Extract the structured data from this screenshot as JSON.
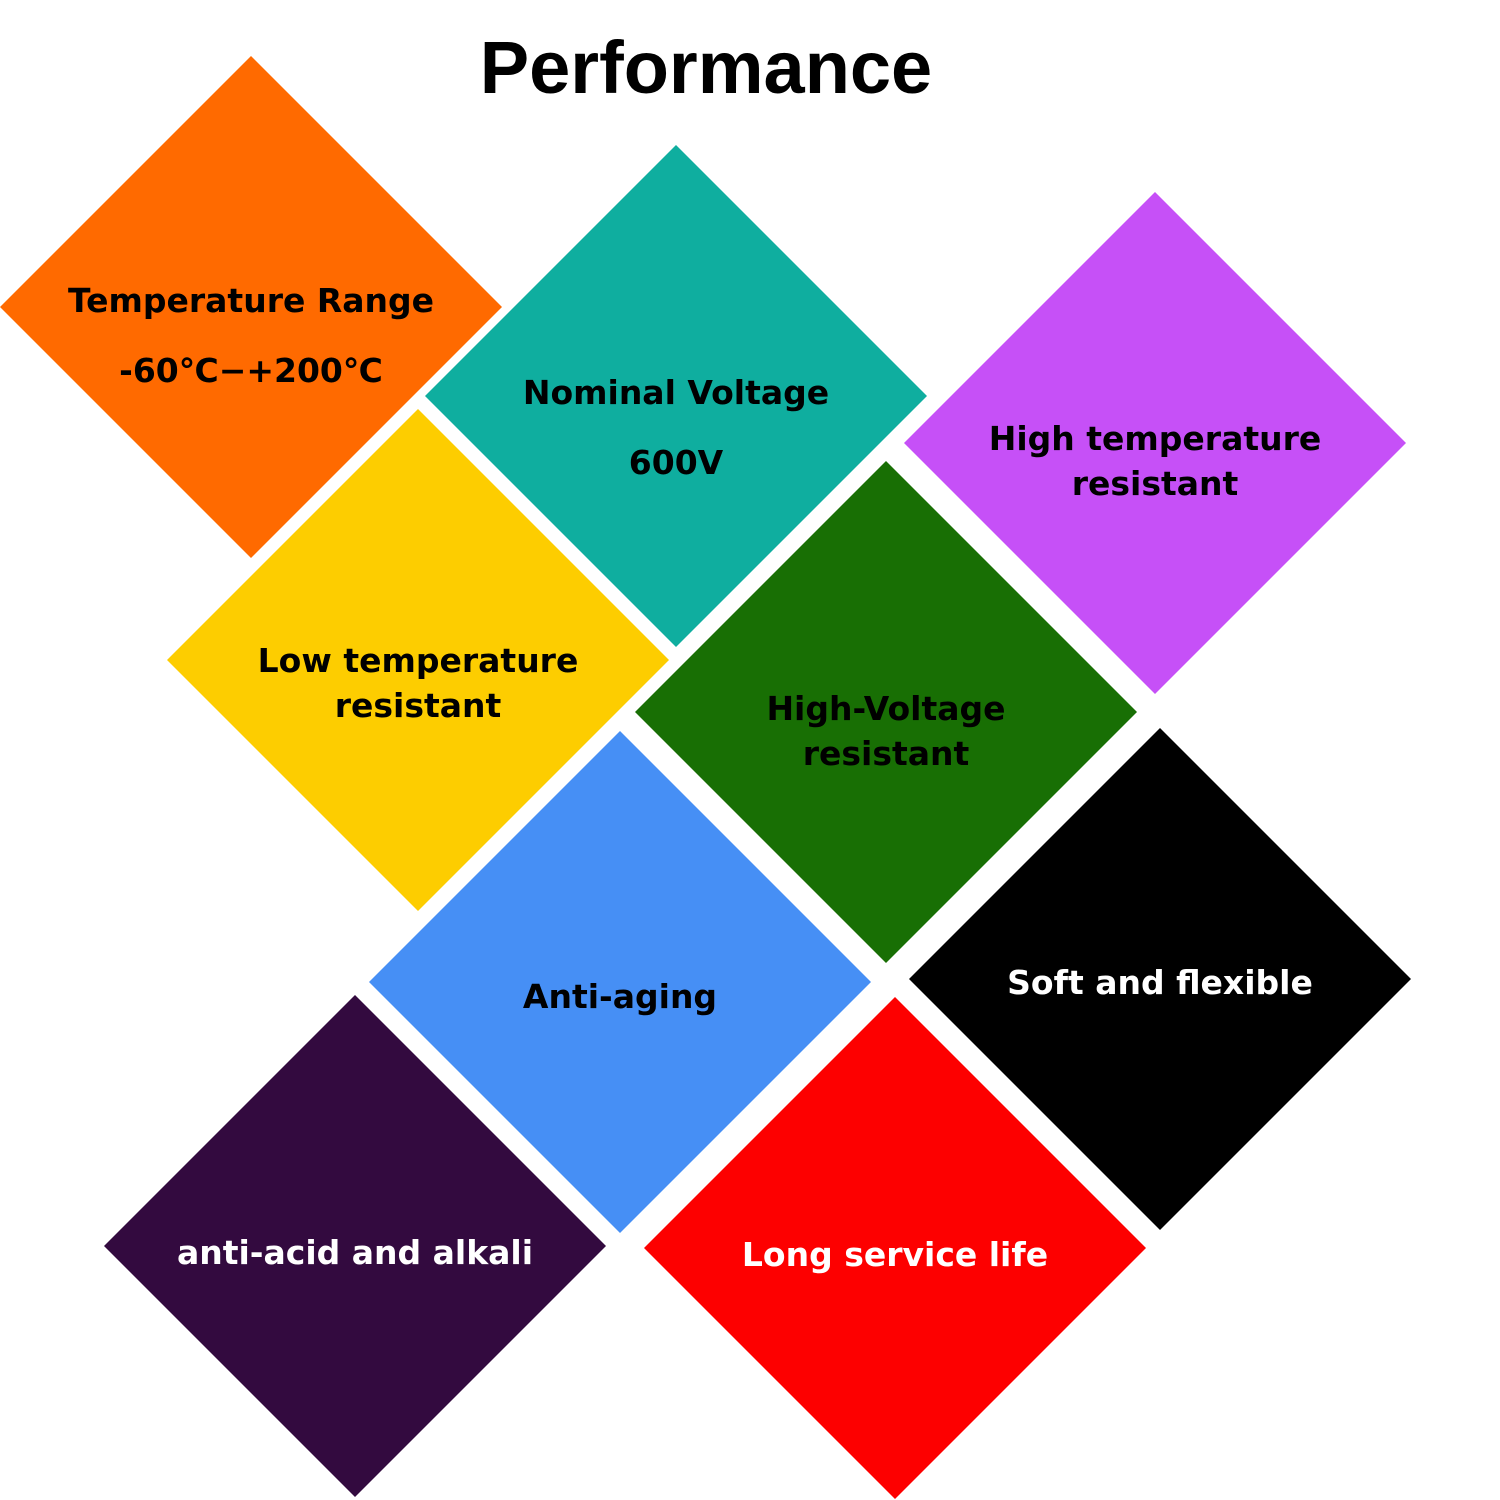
{
  "title": "Performance",
  "tiles": [
    {
      "lines": [
        "Temperature Range",
        "-60℃−+200℃"
      ],
      "color": "#ff6a00",
      "text_color": "#000000"
    },
    {
      "lines": [
        "Nominal Voltage",
        "600V"
      ],
      "color": "#0fae9f",
      "text_color": "#000000"
    },
    {
      "lines": [
        "High temperature",
        "resistant"
      ],
      "color": "#c650f7",
      "text_color": "#000000"
    },
    {
      "lines": [
        "Low temperature",
        "resistant"
      ],
      "color": "#fdcd00",
      "text_color": "#000000"
    },
    {
      "lines": [
        "High-Voltage",
        "resistant"
      ],
      "color": "#186f04",
      "text_color": "#000000"
    },
    {
      "lines": [
        "Anti-aging"
      ],
      "color": "#468ff5",
      "text_color": "#000000"
    },
    {
      "lines": [
        "Soft and flexible"
      ],
      "color": "#000000",
      "text_color": "#ffffff"
    },
    {
      "lines": [
        "anti-acid and alkali"
      ],
      "color": "#330a3f",
      "text_color": "#ffffff"
    },
    {
      "lines": [
        "Long service life"
      ],
      "color": "#fd0000",
      "text_color": "#ffffff"
    }
  ]
}
